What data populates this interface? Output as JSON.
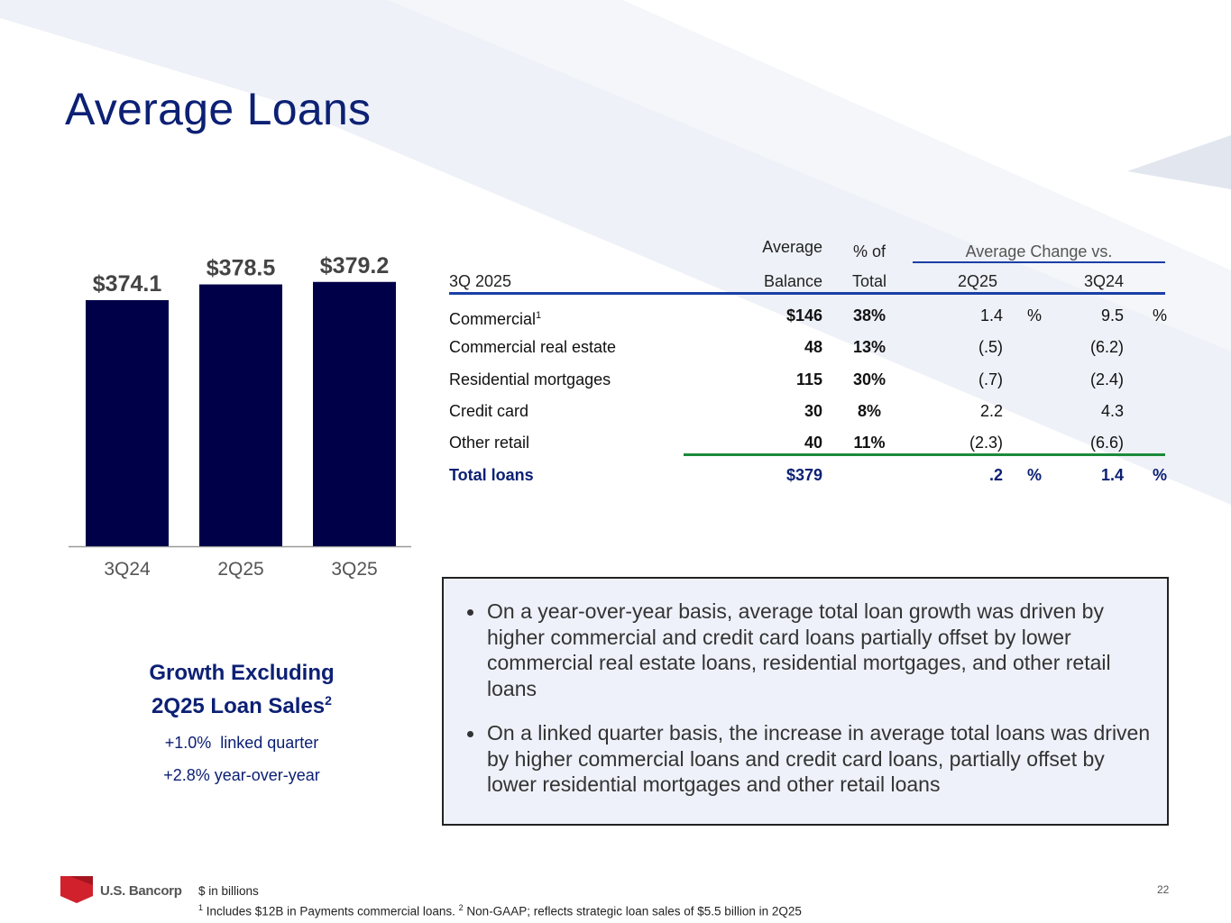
{
  "slide": {
    "title": "Average Loans",
    "page_number": "22",
    "brand_name": "U.S. Bancorp",
    "colors": {
      "title": "#0c2074",
      "bar": "#000048",
      "total_row": "#0c2074",
      "header_rule": "#1a3fa6",
      "total_rule": "#1b8a3a",
      "notes_background": "#eef1f9"
    }
  },
  "chart_data": {
    "type": "bar",
    "categories": [
      "3Q24",
      "2Q25",
      "3Q25"
    ],
    "values": [
      374.1,
      378.5,
      379.2
    ],
    "value_labels": [
      "$374.1",
      "$378.5",
      "$379.2"
    ],
    "title": "",
    "xlabel": "",
    "ylabel": "",
    "grid": false
  },
  "growth": {
    "heading_line1": "Growth Excluding",
    "heading_line2": "2Q25 Loan Sales",
    "heading_sup": "2",
    "linked_quarter": "+1.0%  linked quarter",
    "year_over_year": "+2.8% year-over-year"
  },
  "table": {
    "header": {
      "period": "3Q 2025",
      "balance_top": "Average",
      "balance_bottom": "Balance",
      "pct_top": "% of",
      "pct_bottom": "Total",
      "change_group": "Average Change vs.",
      "change_col1": "2Q25",
      "change_col2": "3Q24"
    },
    "rows": [
      {
        "label": "Commercial",
        "sup": "1",
        "balance": "$146",
        "pct": "38%",
        "chg1": "1.4",
        "chg1_unit": "%",
        "chg2": "9.5",
        "chg2_unit": "%"
      },
      {
        "label": "Commercial real estate",
        "sup": "",
        "balance": "48",
        "pct": "13%",
        "chg1": "(.5)",
        "chg1_unit": "",
        "chg2": "(6.2)",
        "chg2_unit": ""
      },
      {
        "label": "Residential mortgages",
        "sup": "",
        "balance": "115",
        "pct": "30%",
        "chg1": "(.7)",
        "chg1_unit": "",
        "chg2": "(2.4)",
        "chg2_unit": ""
      },
      {
        "label": "Credit card",
        "sup": "",
        "balance": "30",
        "pct": "8%",
        "chg1": "2.2",
        "chg1_unit": "",
        "chg2": "4.3",
        "chg2_unit": ""
      },
      {
        "label": "Other retail",
        "sup": "",
        "balance": "40",
        "pct": "11%",
        "chg1": "(2.3)",
        "chg1_unit": "",
        "chg2": "(6.6)",
        "chg2_unit": ""
      }
    ],
    "total": {
      "label": "Total loans",
      "balance": "$379",
      "chg1": ".2",
      "chg1_unit": "%",
      "chg2": "1.4",
      "chg2_unit": "%"
    }
  },
  "notes": [
    "On a year-over-year basis, average total loan growth was driven by higher commercial and credit card loans partially offset by lower commercial real estate loans, residential mortgages, and other retail loans",
    "On a linked quarter basis, the increase in average total loans was driven by higher commercial loans and credit card loans, partially offset by lower residential mortgages and other retail loans"
  ],
  "footnotes": {
    "line1": "$ in billions",
    "line2_sup1": "1",
    "line2_part1": " Includes $12B in Payments commercial loans. ",
    "line2_sup2": "2",
    "line2_part2": " Non-GAAP; reflects strategic loan sales of $5.5 billion in 2Q25"
  }
}
